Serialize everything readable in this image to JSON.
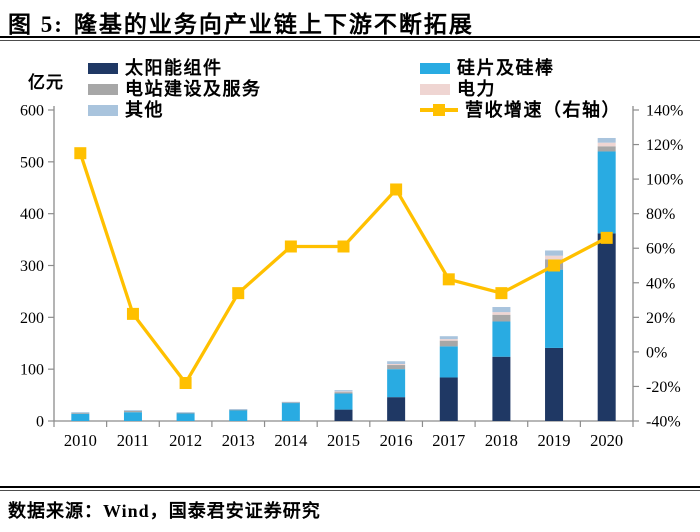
{
  "figure": {
    "label": "图 5:",
    "title": "隆基的业务向产业链上下游不断拓展"
  },
  "source": "数据来源：Wind，国泰君安证券研究",
  "chart_data": {
    "type": "bar",
    "stacked": true,
    "title": "隆基的业务向产业链上下游不断拓展",
    "categories": [
      "2010",
      "2011",
      "2012",
      "2013",
      "2014",
      "2015",
      "2016",
      "2017",
      "2018",
      "2019",
      "2020"
    ],
    "series": [
      {
        "name": "太阳能组件",
        "color": "#1F3864",
        "values": [
          0,
          0,
          0,
          0,
          0,
          22,
          46,
          84,
          124,
          141,
          362
        ]
      },
      {
        "name": "硅片及硅棒",
        "color": "#29ABE2",
        "values": [
          14,
          17,
          15,
          21.5,
          35.5,
          31,
          54,
          60,
          68,
          151,
          158
        ]
      },
      {
        "name": "电站建设及服务",
        "color": "#A7A7A7",
        "values": [
          2,
          2.5,
          1,
          0.5,
          0.5,
          3,
          8,
          11,
          13,
          20,
          10
        ]
      },
      {
        "name": "电力",
        "color": "#EFD5D2",
        "values": [
          0,
          0,
          0,
          0,
          0,
          1,
          2,
          3,
          5,
          7,
          7
        ]
      },
      {
        "name": "其他",
        "color": "#A9C4DD",
        "values": [
          1,
          1.5,
          1,
          1,
          1,
          2.5,
          5.3,
          5.6,
          9.9,
          10,
          9
        ]
      }
    ],
    "line_series": {
      "name": "营收增速（右轴）",
      "color": "#FFC000",
      "axis": "right",
      "values_pct": [
        115,
        22,
        -18,
        34,
        61,
        61,
        94,
        42,
        34,
        50,
        66
      ]
    },
    "ylabel_left": "亿元",
    "ylim_left": [
      0,
      600
    ],
    "ytick_step_left": 100,
    "ytick_labels_left": [
      "0",
      "100",
      "200",
      "300",
      "400",
      "500",
      "600"
    ],
    "ylim_right_pct": [
      -40,
      140
    ],
    "ytick_step_right_pct": 20,
    "ytick_labels_right": [
      "-40%",
      "-20%",
      "0%",
      "20%",
      "40%",
      "60%",
      "80%",
      "100%",
      "120%",
      "140%"
    ],
    "grid": false,
    "legend_position": "top",
    "axis_color": "#8C8C8C"
  }
}
